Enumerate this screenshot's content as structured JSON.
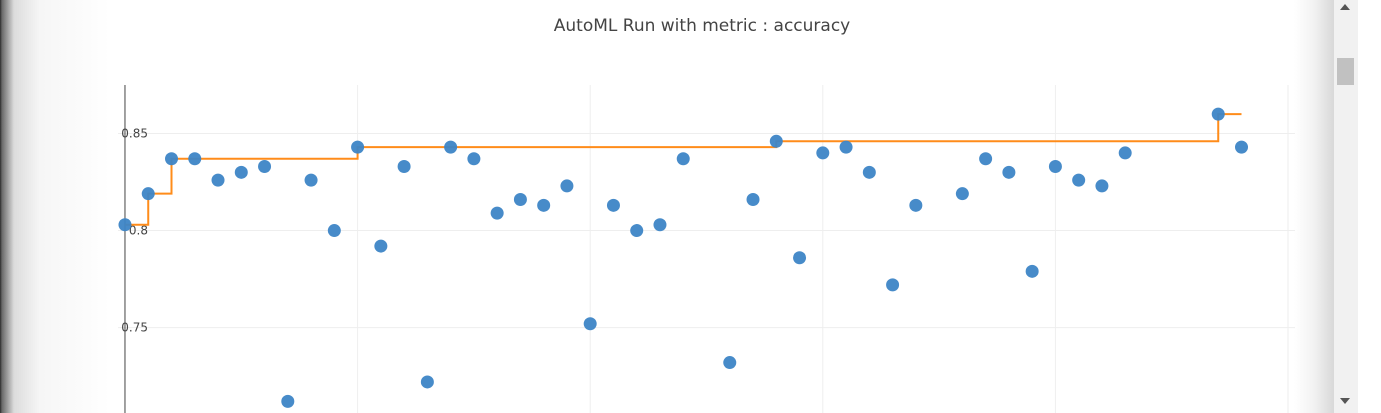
{
  "chart_data": {
    "type": "scatter",
    "title": "AutoML Run with metric : accuracy",
    "xlabel": "",
    "ylabel": "",
    "xlim": [
      -0.3,
      50.3
    ],
    "ylim": [
      0.706,
      0.875
    ],
    "y_ticks": [
      0.75,
      0.8,
      0.85
    ],
    "y_tick_labels": [
      "0.75",
      "0.8",
      "0.85"
    ],
    "x_gridlines": [
      10,
      20,
      30,
      40,
      50
    ],
    "grid": true,
    "legend": "none",
    "colors": {
      "points": "#3d85c6",
      "best_line": "#ff8c1a",
      "grid": "#eeeeee",
      "axis": "#444444"
    },
    "series": [
      {
        "type": "scatter",
        "x": [
          0,
          1,
          2,
          3,
          4,
          5,
          6,
          7,
          8,
          9,
          10,
          11,
          12,
          13,
          14,
          15,
          16,
          17,
          18,
          19,
          20,
          21,
          22,
          23,
          24,
          25,
          26,
          27,
          28,
          29,
          30,
          31,
          32,
          33,
          34,
          35,
          36,
          37,
          38,
          39,
          40,
          41,
          42,
          43,
          44,
          45,
          46,
          47,
          48
        ],
        "values": [
          0.803,
          0.819,
          0.837,
          0.837,
          0.826,
          0.83,
          0.833,
          0.712,
          0.826,
          0.8,
          0.843,
          0.792,
          0.833,
          0.722,
          0.843,
          0.837,
          0.809,
          0.816,
          0.813,
          0.823,
          0.752,
          0.813,
          0.8,
          0.803,
          0.837,
          null,
          0.732,
          0.816,
          0.846,
          0.786,
          0.84,
          0.843,
          0.83,
          0.772,
          0.813,
          null,
          0.819,
          0.837,
          0.83,
          0.779,
          0.833,
          0.826,
          0.823,
          0.84,
          null,
          null,
          null,
          0.86,
          0.843
        ]
      },
      {
        "type": "step",
        "x": [
          0,
          1,
          2,
          3,
          4,
          5,
          6,
          7,
          8,
          9,
          10,
          11,
          12,
          13,
          14,
          15,
          16,
          17,
          18,
          19,
          20,
          21,
          22,
          23,
          24,
          25,
          26,
          27,
          28,
          29,
          30,
          31,
          32,
          33,
          34,
          35,
          36,
          37,
          38,
          39,
          40,
          41,
          42,
          43,
          44,
          45,
          46,
          47,
          48
        ],
        "values": [
          0.803,
          0.819,
          0.837,
          0.837,
          0.837,
          0.837,
          0.837,
          0.837,
          0.837,
          0.837,
          0.843,
          0.843,
          0.843,
          0.843,
          0.843,
          0.843,
          0.843,
          0.843,
          0.843,
          0.843,
          0.843,
          0.843,
          0.843,
          0.843,
          0.843,
          0.843,
          0.843,
          0.843,
          0.846,
          0.846,
          0.846,
          0.846,
          0.846,
          0.846,
          0.846,
          0.846,
          0.846,
          0.846,
          0.846,
          0.846,
          0.846,
          0.846,
          0.846,
          0.846,
          0.846,
          0.846,
          0.846,
          0.86,
          0.86
        ]
      }
    ]
  }
}
